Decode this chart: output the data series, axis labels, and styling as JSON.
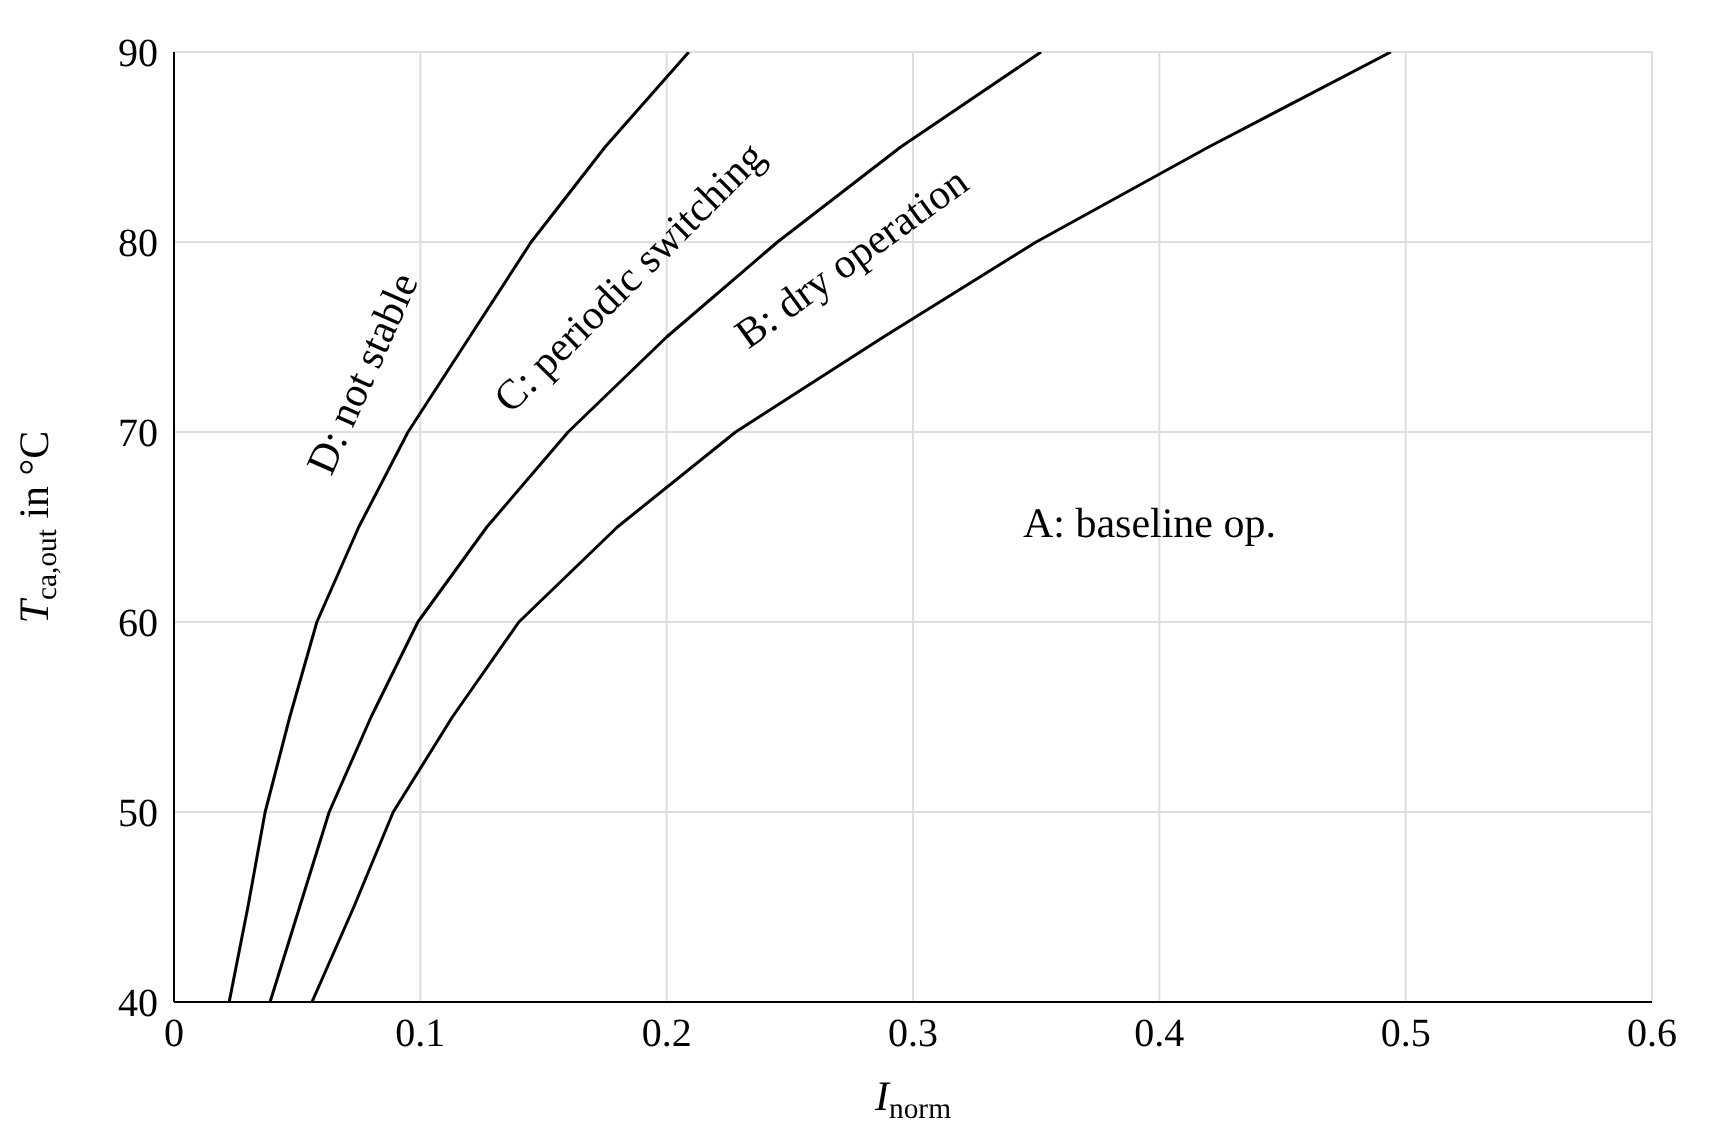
{
  "chart_data": {
    "type": "line",
    "xlabel": "I$_{norm}$",
    "ylabel": "T$_{ca,out}$ in °C",
    "xlim": [
      0,
      0.6
    ],
    "xticks": [
      0,
      0.1,
      0.2,
      0.3,
      0.4,
      0.5,
      0.6
    ],
    "ylim": [
      40,
      90
    ],
    "yticks": [
      40,
      50,
      60,
      70,
      80,
      90
    ],
    "grid": true,
    "marker": "none",
    "line_style": "solid",
    "legend": false,
    "series": [
      {
        "color": "#000000",
        "x": [
          0.0224,
          0.03,
          0.037,
          0.047,
          0.058,
          0.075,
          0.095,
          0.12,
          0.145,
          0.175,
          0.209
        ],
        "values": [
          40,
          45,
          50,
          55,
          60,
          65,
          70,
          75,
          80,
          85,
          90
        ]
      },
      {
        "color": "#000000",
        "x": [
          0.039,
          0.051,
          0.063,
          0.08,
          0.099,
          0.127,
          0.16,
          0.2,
          0.245,
          0.295,
          0.352
        ],
        "values": [
          40,
          45,
          50,
          55,
          60,
          65,
          70,
          75,
          80,
          85,
          90
        ]
      },
      {
        "color": "#000000",
        "x": [
          0.056,
          0.073,
          0.089,
          0.113,
          0.14,
          0.18,
          0.228,
          0.288,
          0.35,
          0.42,
          0.494
        ],
        "values": [
          40,
          45,
          50,
          55,
          60,
          65,
          70,
          75,
          80,
          85,
          90
        ]
      }
    ],
    "annotations": [
      "D: not stable",
      "C: periodic switching",
      "B: dry operation",
      "A: baseline op."
    ]
  }
}
